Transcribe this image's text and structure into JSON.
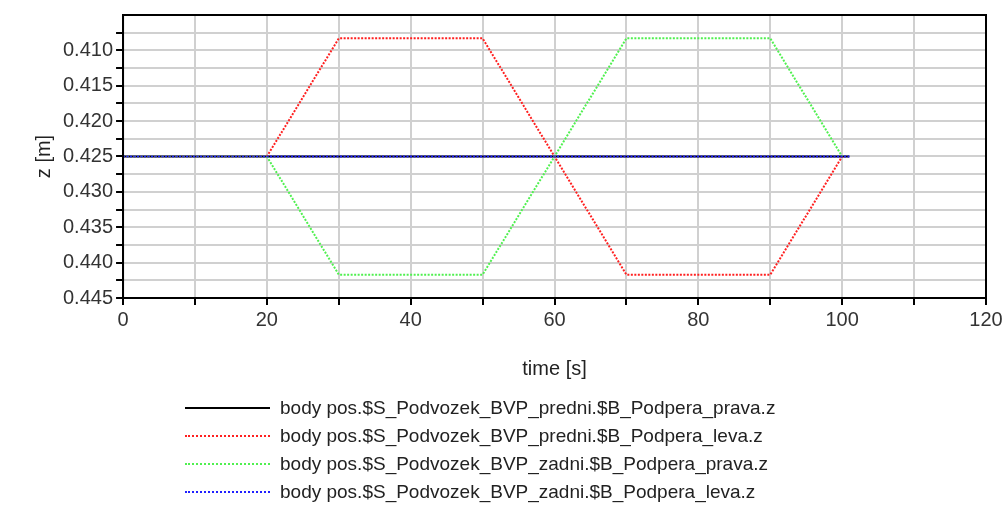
{
  "chart_data": {
    "type": "line",
    "xlabel": "time [s]",
    "ylabel": "z [m]",
    "xlim": [
      0,
      120
    ],
    "xticks": [
      0,
      {
        "value": 10,
        "label": null
      },
      20,
      {
        "value": 30,
        "label": null
      },
      40,
      {
        "value": 50,
        "label": null
      },
      60,
      {
        "value": 70,
        "label": null
      },
      80,
      {
        "value": 90,
        "label": null
      },
      100,
      {
        "value": 110,
        "label": null
      },
      120
    ],
    "ylim": [
      0.445,
      0.405
    ],
    "yticks": [
      {
        "value": 0.4075,
        "label": null
      },
      {
        "value": 0.41,
        "label": "0.410"
      },
      {
        "value": 0.4125,
        "label": null
      },
      0.415,
      {
        "value": 0.4175,
        "label": null
      },
      {
        "value": 0.42,
        "label": "0.420"
      },
      {
        "value": 0.4225,
        "label": null
      },
      0.425,
      {
        "value": 0.4275,
        "label": null
      },
      {
        "value": 0.43,
        "label": "0.430"
      },
      {
        "value": 0.4325,
        "label": null
      },
      0.435,
      {
        "value": 0.4375,
        "label": null
      },
      {
        "value": 0.44,
        "label": "0.440"
      },
      {
        "value": 0.4425,
        "label": null
      },
      0.445
    ],
    "grid": true,
    "legend": "bottom",
    "marker": "none",
    "series": [
      {
        "name": "body pos.$S_Podvozek_BVP_predni.$B_Podpera_prava.z",
        "color": "#000000",
        "line_style": "solid",
        "x": [
          0,
          101
        ],
        "values": [
          0.425,
          0.425
        ]
      },
      {
        "name": "body pos.$S_Podvozek_BVP_predni.$B_Podpera_leva.z",
        "color": "#ff2020",
        "line_style": "dotted",
        "x": [
          0,
          20,
          30,
          50,
          60,
          70,
          90,
          100
        ],
        "values": [
          0.425,
          0.425,
          0.4083,
          0.4083,
          0.425,
          0.4417,
          0.4417,
          0.425
        ]
      },
      {
        "name": "body pos.$S_Podvozek_BVP_zadni.$B_Podpera_prava.z",
        "color": "#50f050",
        "line_style": "dotted",
        "x": [
          0,
          20,
          30,
          50,
          60,
          70,
          90,
          100
        ],
        "values": [
          0.425,
          0.425,
          0.4417,
          0.4417,
          0.425,
          0.4083,
          0.4083,
          0.425
        ]
      },
      {
        "name": "body pos.$S_Podvozek_BVP_zadni.$B_Podpera_leva.z",
        "color": "#2020ff",
        "line_style": "dotted",
        "x": [
          0,
          101
        ],
        "values": [
          0.425,
          0.425
        ]
      }
    ]
  }
}
